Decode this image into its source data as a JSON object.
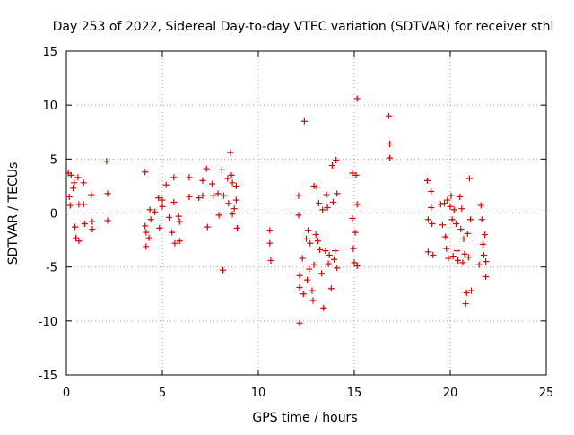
{
  "chart_data": {
    "type": "scatter",
    "title": "Day 253 of 2022, Sidereal Day-to-day VTEC variation (SDTVAR) for receiver sthl",
    "xlabel": "GPS time / hours",
    "ylabel": "SDTVAR / TECUs",
    "xlim": [
      0,
      25
    ],
    "ylim": [
      -15,
      15
    ],
    "xticks": [
      "0",
      "5",
      "10",
      "15",
      "20",
      "25"
    ],
    "yticks": [
      "15",
      "10",
      "5",
      "0",
      "-5",
      "-10",
      "-15"
    ],
    "grid": true,
    "marker": "plus",
    "color": "#dd0000",
    "series": [
      {
        "name": "SDTVAR",
        "points": [
          [
            0.1,
            3.7
          ],
          [
            0.15,
            1.5
          ],
          [
            0.2,
            0.7
          ],
          [
            0.25,
            3.5
          ],
          [
            0.35,
            2.3
          ],
          [
            0.4,
            2.8
          ],
          [
            0.45,
            -1.3
          ],
          [
            0.5,
            -2.3
          ],
          [
            0.6,
            3.3
          ],
          [
            0.65,
            0.8
          ],
          [
            0.65,
            -2.6
          ],
          [
            0.9,
            0.8
          ],
          [
            0.9,
            2.8
          ],
          [
            0.95,
            -1.0
          ],
          [
            1.3,
            1.7
          ],
          [
            1.35,
            -0.8
          ],
          [
            1.35,
            -1.5
          ],
          [
            2.1,
            4.8
          ],
          [
            2.15,
            1.8
          ],
          [
            2.15,
            -0.7
          ],
          [
            4.1,
            3.8
          ],
          [
            4.1,
            -1.2
          ],
          [
            4.15,
            -1.8
          ],
          [
            4.15,
            -3.1
          ],
          [
            4.3,
            -2.3
          ],
          [
            4.35,
            0.3
          ],
          [
            4.4,
            -0.6
          ],
          [
            4.6,
            0.1
          ],
          [
            4.8,
            1.4
          ],
          [
            4.85,
            -1.4
          ],
          [
            5.0,
            0.6
          ],
          [
            5.0,
            1.2
          ],
          [
            5.2,
            2.6
          ],
          [
            5.35,
            -0.4
          ],
          [
            5.5,
            -1.8
          ],
          [
            5.6,
            3.3
          ],
          [
            5.6,
            1.0
          ],
          [
            5.65,
            -2.8
          ],
          [
            5.85,
            -0.3
          ],
          [
            5.9,
            -0.8
          ],
          [
            5.9,
            -2.6
          ],
          [
            6.4,
            3.3
          ],
          [
            6.4,
            1.5
          ],
          [
            6.9,
            1.4
          ],
          [
            7.1,
            3.0
          ],
          [
            7.1,
            1.6
          ],
          [
            7.3,
            4.1
          ],
          [
            7.35,
            -1.3
          ],
          [
            7.6,
            2.7
          ],
          [
            7.65,
            1.6
          ],
          [
            7.9,
            1.8
          ],
          [
            7.95,
            -0.2
          ],
          [
            8.1,
            4.0
          ],
          [
            8.15,
            -5.3
          ],
          [
            8.2,
            1.6
          ],
          [
            8.4,
            3.2
          ],
          [
            8.45,
            0.9
          ],
          [
            8.55,
            5.6
          ],
          [
            8.6,
            3.5
          ],
          [
            8.65,
            2.8
          ],
          [
            8.65,
            -0.1
          ],
          [
            8.75,
            0.4
          ],
          [
            8.85,
            1.2
          ],
          [
            8.85,
            2.5
          ],
          [
            8.9,
            -1.4
          ],
          [
            10.6,
            -1.6
          ],
          [
            10.6,
            -2.8
          ],
          [
            10.65,
            -4.4
          ],
          [
            12.1,
            1.6
          ],
          [
            12.1,
            -0.2
          ],
          [
            12.15,
            -5.8
          ],
          [
            12.15,
            -6.9
          ],
          [
            12.15,
            -10.2
          ],
          [
            12.3,
            -4.2
          ],
          [
            12.35,
            -7.5
          ],
          [
            12.4,
            8.5
          ],
          [
            12.5,
            -2.4
          ],
          [
            12.55,
            -6.2
          ],
          [
            12.6,
            -1.6
          ],
          [
            12.65,
            -5.2
          ],
          [
            12.7,
            -2.8
          ],
          [
            12.8,
            -7.2
          ],
          [
            12.85,
            -8.1
          ],
          [
            12.9,
            2.5
          ],
          [
            12.9,
            -4.8
          ],
          [
            13.0,
            -2.0
          ],
          [
            13.05,
            2.4
          ],
          [
            13.1,
            -2.6
          ],
          [
            13.15,
            0.9
          ],
          [
            13.2,
            -3.4
          ],
          [
            13.3,
            -5.6
          ],
          [
            13.35,
            0.3
          ],
          [
            13.4,
            -8.8
          ],
          [
            13.5,
            -3.5
          ],
          [
            13.55,
            1.7
          ],
          [
            13.6,
            0.5
          ],
          [
            13.65,
            -4.7
          ],
          [
            13.7,
            -3.9
          ],
          [
            13.8,
            -7.0
          ],
          [
            13.85,
            4.4
          ],
          [
            13.9,
            1.0
          ],
          [
            13.95,
            -4.3
          ],
          [
            14.0,
            -3.5
          ],
          [
            14.05,
            4.9
          ],
          [
            14.1,
            -5.1
          ],
          [
            14.1,
            1.8
          ],
          [
            14.9,
            3.7
          ],
          [
            14.9,
            -0.5
          ],
          [
            14.95,
            -3.3
          ],
          [
            15.0,
            -4.6
          ],
          [
            15.05,
            -1.8
          ],
          [
            15.1,
            3.5
          ],
          [
            15.15,
            10.6
          ],
          [
            15.15,
            0.8
          ],
          [
            15.15,
            -4.9
          ],
          [
            16.8,
            9.0
          ],
          [
            16.85,
            6.4
          ],
          [
            16.85,
            5.1
          ],
          [
            18.8,
            3.0
          ],
          [
            18.85,
            -0.6
          ],
          [
            18.85,
            -3.6
          ],
          [
            19.0,
            2.0
          ],
          [
            19.0,
            0.5
          ],
          [
            19.05,
            -1.0
          ],
          [
            19.1,
            -3.9
          ],
          [
            19.5,
            0.8
          ],
          [
            19.6,
            -1.1
          ],
          [
            19.7,
            0.9
          ],
          [
            19.75,
            -2.2
          ],
          [
            19.8,
            -3.3
          ],
          [
            19.85,
            1.2
          ],
          [
            19.9,
            -4.2
          ],
          [
            20.0,
            0.6
          ],
          [
            20.05,
            1.6
          ],
          [
            20.1,
            -0.6
          ],
          [
            20.15,
            -4.0
          ],
          [
            20.2,
            0.3
          ],
          [
            20.3,
            -1.0
          ],
          [
            20.35,
            -3.5
          ],
          [
            20.4,
            -4.4
          ],
          [
            20.5,
            1.5
          ],
          [
            20.55,
            -1.5
          ],
          [
            20.6,
            0.4
          ],
          [
            20.65,
            -4.6
          ],
          [
            20.7,
            -2.4
          ],
          [
            20.75,
            -3.8
          ],
          [
            20.8,
            -8.4
          ],
          [
            20.85,
            -7.4
          ],
          [
            20.9,
            -1.9
          ],
          [
            20.95,
            -4.1
          ],
          [
            21.0,
            3.2
          ],
          [
            21.05,
            -0.6
          ],
          [
            21.1,
            -7.2
          ],
          [
            21.5,
            -4.8
          ],
          [
            21.6,
            0.7
          ],
          [
            21.65,
            -0.6
          ],
          [
            21.7,
            -2.9
          ],
          [
            21.75,
            -3.9
          ],
          [
            21.8,
            -2.0
          ],
          [
            21.85,
            -4.5
          ],
          [
            21.85,
            -5.9
          ]
        ]
      }
    ]
  }
}
